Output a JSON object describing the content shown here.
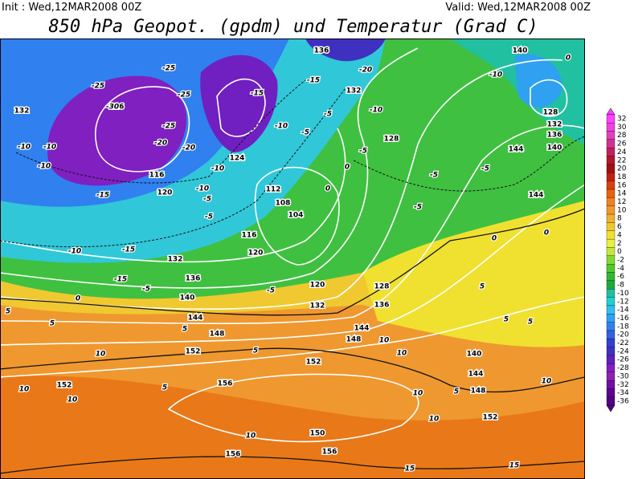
{
  "header": {
    "init": "Init : Wed,12MAR2008 00Z",
    "valid": "Valid: Wed,12MAR2008 00Z",
    "title": "850 hPa Geopot. (gpdm) und Temperatur (Grad C)"
  },
  "colorbar": {
    "labels": [
      32,
      30,
      28,
      26,
      24,
      22,
      20,
      18,
      16,
      14,
      12,
      10,
      8,
      6,
      4,
      2,
      0,
      -2,
      -4,
      -6,
      -8,
      -10,
      -12,
      -14,
      -16,
      -18,
      -20,
      -22,
      -24,
      -26,
      -28,
      -30,
      -32,
      -34,
      -36
    ],
    "colors": [
      "#ff40ff",
      "#f040e0",
      "#e040c0",
      "#d03090",
      "#c02060",
      "#b01830",
      "#a01010",
      "#c02010",
      "#d84010",
      "#e86010",
      "#f08020",
      "#f09830",
      "#f0b030",
      "#f0c830",
      "#f0e030",
      "#e8f040",
      "#c0e840",
      "#80d830",
      "#50c830",
      "#30b830",
      "#20a840",
      "#20c0a0",
      "#20d0d0",
      "#30c0f0",
      "#30a0f0",
      "#3080f0",
      "#3060e0",
      "#3040d0",
      "#4030c0",
      "#6020c0",
      "#8020c0",
      "#9020b0",
      "#7010a0",
      "#600090",
      "#500080"
    ]
  },
  "geopotential_labels": [
    136,
    140,
    132,
    116,
    132,
    128,
    116,
    120,
    112,
    108,
    104,
    116,
    120,
    132,
    136,
    140,
    144,
    148,
    152,
    156,
    152,
    152,
    144,
    148,
    136,
    128,
    140,
    144,
    148,
    152,
    156,
    156,
    150,
    144,
    140,
    136,
    132,
    128,
    144,
    124,
    120,
    132
  ],
  "temperature_labels": [
    -25,
    -25,
    -30,
    -25,
    -25,
    -20,
    -20,
    -10,
    -10,
    -10,
    -15,
    -15,
    -15,
    -10,
    -5,
    0,
    -5,
    -5,
    -10,
    -10,
    -15,
    -10,
    -5,
    -15,
    -20,
    -10,
    -5,
    -5,
    0,
    0,
    -5,
    -5,
    -5,
    -10,
    0,
    5,
    5,
    10,
    10,
    10,
    5,
    5,
    10,
    10,
    10,
    10,
    10,
    15,
    15,
    10,
    5,
    -5,
    5,
    5,
    5,
    0,
    0,
    5
  ]
}
